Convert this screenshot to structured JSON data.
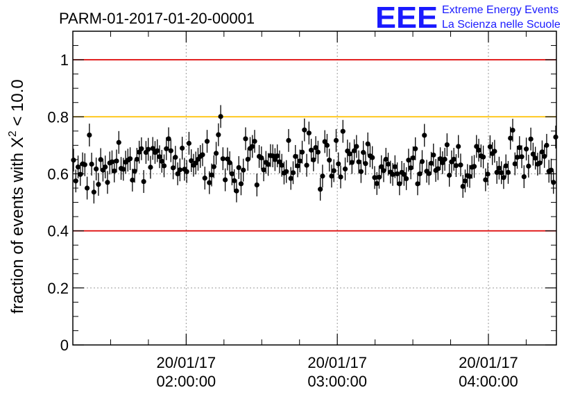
{
  "chart_data": {
    "type": "scatter",
    "title": "PARM-01-2017-01-20-00001",
    "ylabel_prefix": "fraction of events with ",
    "ylabel_symbol": "X",
    "ylabel_sup": "2",
    "ylabel_suffix": " < 10.0",
    "ylim": [
      0,
      1.1
    ],
    "yticks": [
      "0",
      "0.2",
      "0.4",
      "0.6",
      "0.8",
      "1"
    ],
    "xlim_hours": [
      1.25,
      4.45
    ],
    "xticks": [
      {
        "date": "20/01/17",
        "time": "02:00:00",
        "hour": 2
      },
      {
        "date": "20/01/17",
        "time": "03:00:00",
        "hour": 3
      },
      {
        "date": "20/01/17",
        "time": "04:00:00",
        "hour": 4
      }
    ],
    "grid": true,
    "reference_lines": [
      {
        "value": 1.0,
        "color": "#dd0000"
      },
      {
        "value": 0.8,
        "color": "#ffc000"
      },
      {
        "value": 0.4,
        "color": "#dd0000"
      }
    ],
    "point_error": 0.04,
    "logo": {
      "text": "EEE",
      "line1": "Extreme Energy Events",
      "line2": "La Scienza nelle Scuole"
    },
    "y": [
      0.648,
      0.575,
      0.624,
      0.598,
      0.635,
      0.632,
      0.55,
      0.736,
      0.634,
      0.536,
      0.617,
      0.563,
      0.65,
      0.613,
      0.624,
      0.57,
      0.638,
      0.642,
      0.61,
      0.645,
      0.71,
      0.619,
      0.616,
      0.641,
      0.648,
      0.653,
      0.578,
      0.609,
      0.651,
      0.676,
      0.688,
      0.573,
      0.675,
      0.686,
      0.623,
      0.689,
      0.675,
      0.681,
      0.66,
      0.644,
      0.628,
      0.688,
      0.723,
      0.681,
      0.621,
      0.658,
      0.6,
      0.614,
      0.69,
      0.616,
      0.608,
      0.707,
      0.646,
      0.63,
      0.638,
      0.651,
      0.661,
      0.667,
      0.585,
      0.714,
      0.569,
      0.596,
      0.625,
      0.672,
      0.737,
      0.801,
      0.653,
      0.579,
      0.652,
      0.639,
      0.6,
      0.576,
      0.54,
      0.622,
      0.565,
      0.613,
      0.723,
      0.651,
      0.689,
      0.696,
      0.714,
      0.561,
      0.661,
      0.656,
      0.614,
      0.64,
      0.633,
      0.664,
      0.663,
      0.65,
      0.663,
      0.642,
      0.63,
      0.603,
      0.608,
      0.717,
      0.584,
      0.604,
      0.661,
      0.628,
      0.645,
      0.676,
      0.754,
      0.63,
      0.743,
      0.683,
      0.649,
      0.692,
      0.676,
      0.546,
      0.592,
      0.713,
      0.7,
      0.648,
      0.592,
      0.611,
      0.717,
      0.635,
      0.589,
      0.749,
      0.617,
      0.68,
      0.67,
      0.64,
      0.681,
      0.696,
      0.642,
      0.608,
      0.675,
      0.636,
      0.705,
      0.663,
      0.657,
      0.587,
      0.566,
      0.588,
      0.625,
      0.611,
      0.651,
      0.634,
      0.606,
      0.598,
      0.625,
      0.6,
      0.565,
      0.605,
      0.598,
      0.583,
      0.648,
      0.621,
      0.656,
      0.688,
      0.565,
      0.6,
      0.643,
      0.735,
      0.609,
      0.601,
      0.637,
      0.666,
      0.612,
      0.618,
      0.653,
      0.639,
      0.651,
      0.702,
      0.595,
      0.642,
      0.651,
      0.629,
      0.696,
      0.631,
      0.556,
      0.575,
      0.594,
      0.591,
      0.623,
      0.626,
      0.696,
      0.683,
      0.663,
      0.659,
      0.579,
      0.599,
      0.695,
      0.671,
      0.679,
      0.605,
      0.62,
      0.604,
      0.587,
      0.628,
      0.605,
      0.725,
      0.753,
      0.635,
      0.658,
      0.692,
      0.66,
      0.59,
      0.687,
      0.627,
      0.722,
      0.669,
      0.655,
      0.634,
      0.638,
      0.677,
      0.661,
      0.7,
      0.609,
      0.613,
      0.57,
      0.729
    ]
  }
}
